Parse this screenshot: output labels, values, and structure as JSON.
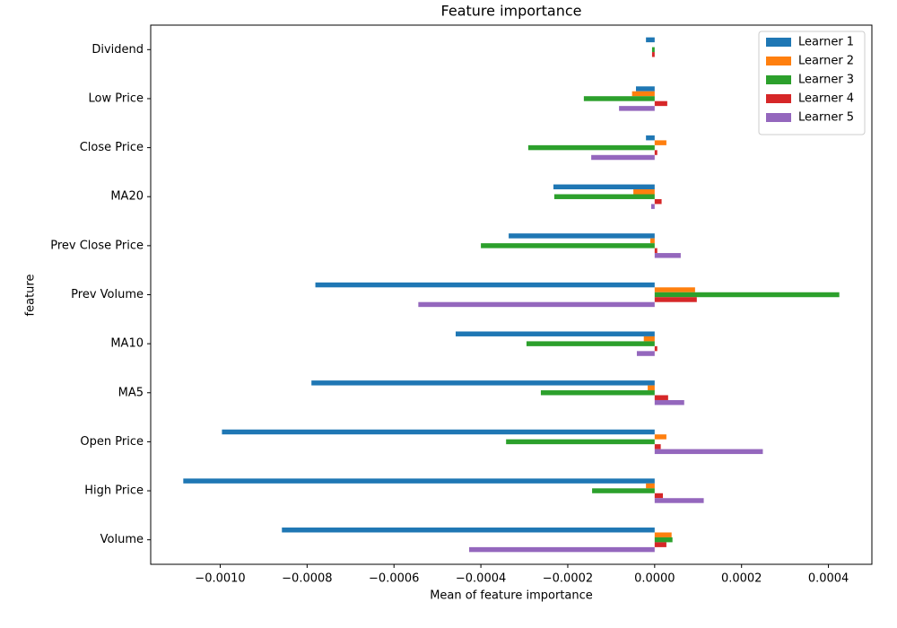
{
  "chart_data": {
    "type": "barh",
    "title": "Feature importance",
    "xlabel": "Mean of feature importance",
    "ylabel": "feature",
    "categories": [
      "Dividend",
      "Low Price",
      "Close Price",
      "MA20",
      "Prev Close Price",
      "Prev Volume",
      "MA10",
      "MA5",
      "Open Price",
      "High Price",
      "Volume"
    ],
    "series": [
      {
        "name": "Learner 1",
        "color": "#1f77b4",
        "values": [
          -2e-05,
          -4.3e-05,
          -2e-05,
          -0.000233,
          -0.000336,
          -0.000781,
          -0.000458,
          -0.00079,
          -0.000996,
          -0.001085,
          -0.000858
        ]
      },
      {
        "name": "Learner 2",
        "color": "#ff7f0e",
        "values": [
          0,
          -5.2e-05,
          2.7e-05,
          -4.9e-05,
          -1e-05,
          9.3e-05,
          -2.5e-05,
          -1.6e-05,
          2.7e-05,
          -2e-05,
          3.9e-05
        ]
      },
      {
        "name": "Learner 3",
        "color": "#2ca02c",
        "values": [
          -6e-06,
          -0.000163,
          -0.000291,
          -0.000231,
          -0.0004,
          0.000425,
          -0.000295,
          -0.000262,
          -0.000342,
          -0.000144,
          4.1e-05
        ]
      },
      {
        "name": "Learner 4",
        "color": "#d62728",
        "values": [
          -6e-06,
          2.9e-05,
          6e-06,
          1.6e-05,
          6e-06,
          9.7e-05,
          6e-06,
          3.1e-05,
          1.4e-05,
          1.9e-05,
          2.7e-05
        ]
      },
      {
        "name": "Learner 5",
        "color": "#9467bd",
        "values": [
          0,
          -8.2e-05,
          -0.000146,
          -8e-06,
          6e-05,
          -0.000544,
          -4.1e-05,
          6.8e-05,
          0.000249,
          0.000113,
          -0.000427
        ]
      }
    ],
    "xlim": [
      -0.00116,
      0.0005
    ],
    "xticks": [
      {
        "value": -0.001,
        "label": "−0.0010"
      },
      {
        "value": -0.0008,
        "label": "−0.0008"
      },
      {
        "value": -0.0006,
        "label": "−0.0006"
      },
      {
        "value": -0.0004,
        "label": "−0.0004"
      },
      {
        "value": -0.0002,
        "label": "−0.0002"
      },
      {
        "value": 0,
        "label": "0.0000"
      },
      {
        "value": 0.0002,
        "label": "0.0002"
      },
      {
        "value": 0.0004,
        "label": "0.0004"
      }
    ],
    "legend": "upper right",
    "grid": false
  }
}
